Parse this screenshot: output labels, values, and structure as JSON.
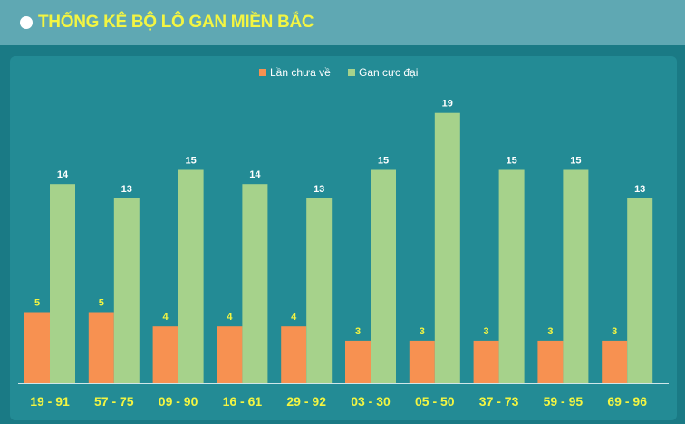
{
  "header": {
    "title": "THỐNG KÊ BỘ LÔ GAN MIỀN BẮC"
  },
  "colors": {
    "series1": "#f79151",
    "series2": "#a6d28b",
    "label_primary": "#f3f542",
    "label_secondary": "#ffffff"
  },
  "chart_data": {
    "type": "bar",
    "categories": [
      "19 - 91",
      "57 - 75",
      "09 - 90",
      "16 - 61",
      "29 - 92",
      "03 - 30",
      "05 - 50",
      "37 - 73",
      "59 - 95",
      "69 - 96"
    ],
    "series": [
      {
        "name": "Lần chưa về",
        "values": [
          5,
          5,
          4,
          4,
          4,
          3,
          3,
          3,
          3,
          3
        ]
      },
      {
        "name": "Gan cực đại",
        "values": [
          14,
          13,
          15,
          14,
          13,
          15,
          19,
          15,
          15,
          13
        ]
      }
    ],
    "title": "",
    "xlabel": "",
    "ylabel": "",
    "ylim": [
      0,
      20
    ],
    "grid": false,
    "legend": "top-center"
  }
}
